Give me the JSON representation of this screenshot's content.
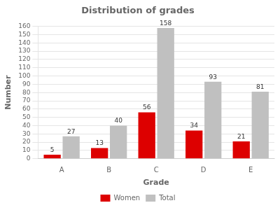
{
  "chart_data": {
    "type": "bar",
    "title": "Distribution of grades",
    "xlabel": "Grade",
    "ylabel": "Number",
    "categories": [
      "A",
      "B",
      "C",
      "D",
      "E"
    ],
    "series": [
      {
        "name": "Women",
        "color": "#dd0000",
        "values": [
          5,
          13,
          56,
          34,
          21
        ]
      },
      {
        "name": "Total",
        "color": "#c0c0c0",
        "values": [
          27,
          40,
          158,
          93,
          81
        ]
      }
    ],
    "ylim": [
      0,
      160
    ],
    "yticks": [
      0,
      10,
      20,
      30,
      40,
      50,
      60,
      70,
      80,
      90,
      100,
      110,
      120,
      130,
      140,
      150,
      160
    ],
    "grid": true,
    "legend": "bottom",
    "data_labels": true
  }
}
